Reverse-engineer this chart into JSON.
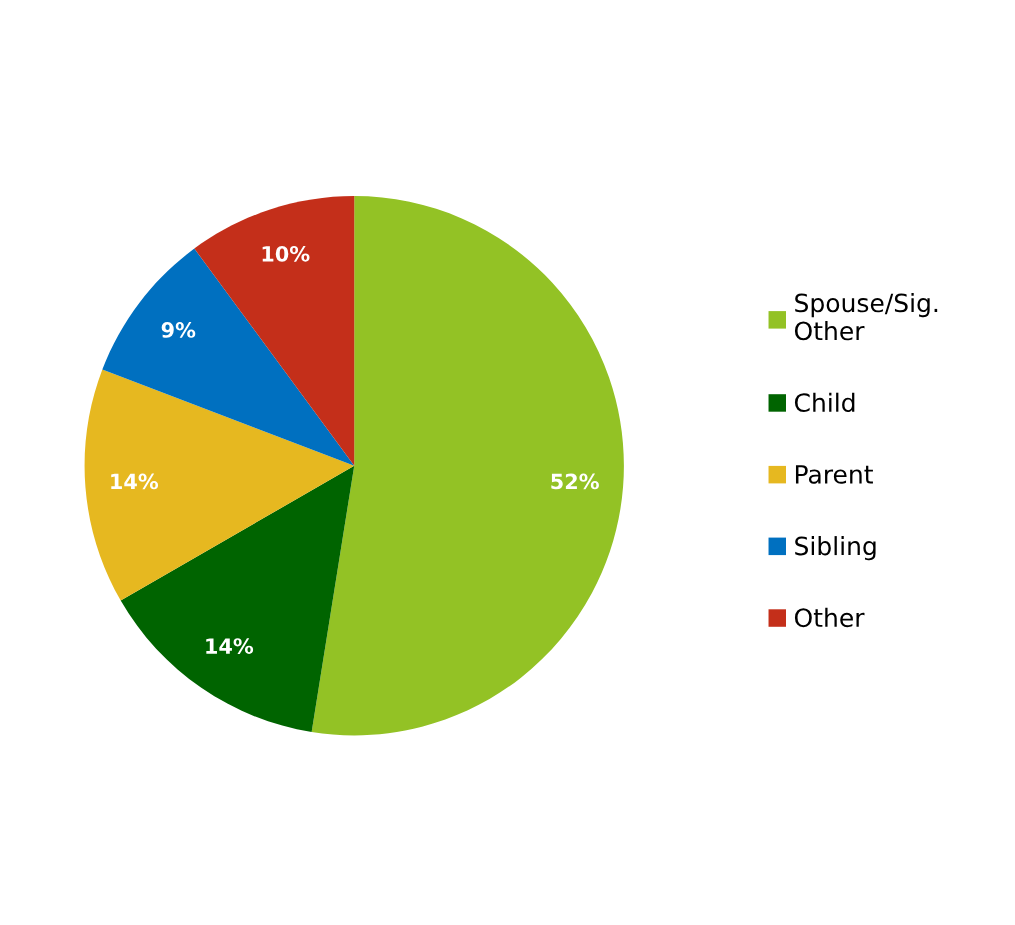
{
  "chart_data": {
    "type": "pie",
    "categories": [
      "Spouse/Sig.\nOther",
      "Child",
      "Parent",
      "Sibling",
      "Other"
    ],
    "values": [
      52,
      14,
      14,
      9,
      10
    ],
    "colors": [
      "#93c225",
      "#006400",
      "#e6b820",
      "#0070c0",
      "#c42f1a"
    ],
    "value_labels": [
      "52%",
      "14%",
      "14%",
      "9%",
      "10%"
    ],
    "legend": "right"
  }
}
